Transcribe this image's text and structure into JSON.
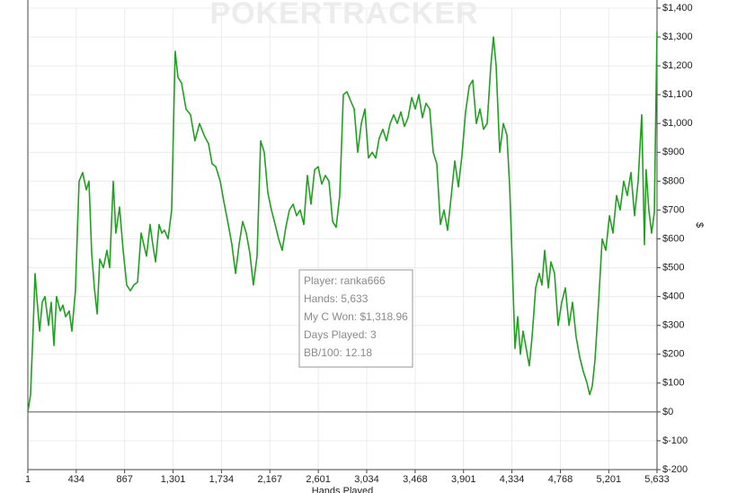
{
  "chart_data": {
    "type": "line",
    "watermark": "POKERTRACKER",
    "xlabel": "Hands Played",
    "ylabel": "$",
    "annotations": [
      "Player: ranka666",
      "Hands: 5,633",
      "My C Won: $1,318.96",
      "Days Played: 3",
      "BB/100: 12.18"
    ],
    "color": "#22a022",
    "grid": true,
    "xlim": [
      1,
      5633
    ],
    "ylim": [
      -200,
      1400
    ],
    "xticks": [
      1,
      434,
      867,
      {
        "value": 1301,
        "label": "1,301"
      },
      {
        "value": 1734,
        "label": "1,734"
      },
      {
        "value": 2167,
        "label": "2,167"
      },
      {
        "value": 2601,
        "label": "2,601"
      },
      {
        "value": 3034,
        "label": "3,034"
      },
      {
        "value": 3468,
        "label": "3,468"
      },
      {
        "value": 3901,
        "label": "3,901"
      },
      {
        "value": 4334,
        "label": "4,334"
      },
      {
        "value": 4768,
        "label": "4,768"
      },
      {
        "value": 5201,
        "label": "5,201"
      },
      {
        "value": 5633,
        "label": "5,633"
      }
    ],
    "yticks": [
      {
        "value": -200,
        "label": "$-200"
      },
      {
        "value": -100,
        "label": "$-100"
      },
      {
        "value": 0,
        "label": "$0"
      },
      {
        "value": 100,
        "label": "$100"
      },
      {
        "value": 200,
        "label": "$200"
      },
      {
        "value": 300,
        "label": "$300"
      },
      {
        "value": 400,
        "label": "$400"
      },
      {
        "value": 500,
        "label": "$500"
      },
      {
        "value": 600,
        "label": "$600"
      },
      {
        "value": 700,
        "label": "$700"
      },
      {
        "value": 800,
        "label": "$800"
      },
      {
        "value": 900,
        "label": "$900"
      },
      {
        "value": 1000,
        "label": "$1,000"
      },
      {
        "value": 1100,
        "label": "$1,100"
      },
      {
        "value": 1200,
        "label": "$1,200"
      },
      {
        "value": 1300,
        "label": "$1,300"
      },
      {
        "value": 1400,
        "label": "$1,400"
      }
    ],
    "x": [
      1,
      25,
      49,
      65,
      81,
      106,
      130,
      154,
      186,
      210,
      234,
      258,
      291,
      315,
      339,
      371,
      395,
      427,
      460,
      492,
      524,
      548,
      572,
      596,
      621,
      645,
      677,
      709,
      733,
      765,
      789,
      822,
      854,
      886,
      918,
      950,
      983,
      1015,
      1039,
      1063,
      1095,
      1119,
      1144,
      1176,
      1200,
      1224,
      1256,
      1288,
      1320,
      1345,
      1377,
      1417,
      1457,
      1497,
      1538,
      1578,
      1618,
      1650,
      1683,
      1723,
      1755,
      1795,
      1827,
      1860,
      1892,
      1924,
      1956,
      1988,
      2020,
      2053,
      2085,
      2117,
      2149,
      2181,
      2214,
      2246,
      2278,
      2310,
      2342,
      2375,
      2407,
      2439,
      2471,
      2503,
      2535,
      2568,
      2600,
      2632,
      2664,
      2696,
      2729,
      2761,
      2793,
      2825,
      2857,
      2889,
      2922,
      2954,
      2986,
      3018,
      3050,
      3083,
      3115,
      3147,
      3179,
      3211,
      3244,
      3276,
      3308,
      3340,
      3372,
      3404,
      3437,
      3469,
      3501,
      3533,
      3565,
      3598,
      3630,
      3662,
      3694,
      3726,
      3758,
      3791,
      3823,
      3855,
      3887,
      3919,
      3952,
      3984,
      4016,
      4048,
      4080,
      4112,
      4145,
      4169,
      4193,
      4225,
      4257,
      4289,
      4314,
      4338,
      4362,
      4386,
      4410,
      4434,
      4466,
      4490,
      4515,
      4547,
      4579,
      4603,
      4627,
      4660,
      4684,
      4716,
      4748,
      4780,
      4812,
      4845,
      4877,
      4909,
      4941,
      4973,
      5006,
      5030,
      5054,
      5078,
      5110,
      5142,
      5174,
      5207,
      5239,
      5271,
      5303,
      5335,
      5367,
      5400,
      5432,
      5464,
      5496,
      5520,
      5536,
      5560,
      5585,
      5609,
      5633
    ],
    "values": [
      0,
      60,
      300,
      480,
      400,
      280,
      380,
      400,
      300,
      380,
      230,
      400,
      350,
      370,
      330,
      350,
      280,
      420,
      800,
      830,
      770,
      800,
      550,
      430,
      340,
      530,
      500,
      560,
      500,
      800,
      620,
      710,
      560,
      440,
      420,
      440,
      450,
      620,
      580,
      540,
      650,
      580,
      520,
      650,
      620,
      630,
      600,
      700,
      1250,
      1160,
      1140,
      1050,
      1030,
      940,
      1000,
      960,
      930,
      860,
      850,
      800,
      730,
      650,
      580,
      480,
      580,
      660,
      620,
      550,
      440,
      540,
      940,
      900,
      760,
      700,
      650,
      600,
      560,
      640,
      700,
      720,
      680,
      700,
      650,
      820,
      720,
      840,
      850,
      790,
      820,
      800,
      660,
      640,
      750,
      1100,
      1110,
      1080,
      1050,
      900,
      1000,
      1050,
      880,
      900,
      880,
      950,
      980,
      940,
      1000,
      1030,
      1000,
      1040,
      990,
      1020,
      1090,
      1050,
      1100,
      1020,
      1070,
      1050,
      900,
      860,
      650,
      700,
      630,
      750,
      870,
      780,
      890,
      1040,
      1130,
      1150,
      1000,
      1050,
      980,
      1000,
      1200,
      1300,
      1200,
      900,
      1000,
      960,
      780,
      510,
      220,
      330,
      200,
      280,
      210,
      160,
      260,
      430,
      480,
      440,
      560,
      430,
      520,
      480,
      300,
      380,
      430,
      300,
      380,
      260,
      190,
      140,
      100,
      60,
      90,
      180,
      380,
      600,
      560,
      680,
      620,
      750,
      700,
      800,
      750,
      830,
      680,
      800,
      1030,
      580,
      840,
      700,
      620,
      690,
      1318.96
    ]
  }
}
